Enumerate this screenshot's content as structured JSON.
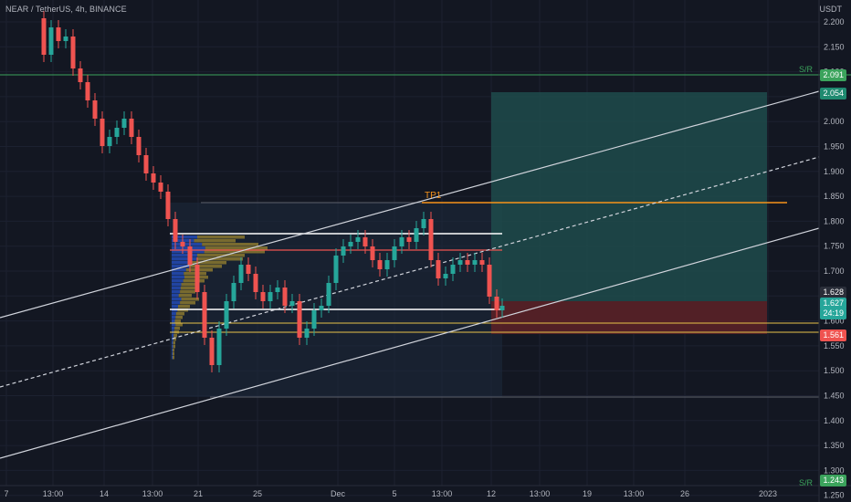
{
  "header": {
    "ticker": "NEAR / TetherUS, 4h, BINANCE",
    "currency": "USDT"
  },
  "price_axis": {
    "ticks": [
      "2.200",
      "2.150",
      "2.100",
      "2.050",
      "2.000",
      "1.950",
      "1.900",
      "1.850",
      "1.800",
      "1.750",
      "1.700",
      "1.650",
      "1.600",
      "1.550",
      "1.500",
      "1.450",
      "1.400",
      "1.350",
      "1.300",
      "1.250"
    ]
  },
  "time_axis": {
    "ticks": [
      "7",
      "13:00",
      "14",
      "13:00",
      "21",
      "25",
      "Dec",
      "5",
      "13:00",
      "12",
      "13:00",
      "19",
      "13:00",
      "26",
      "2023"
    ]
  },
  "labels": {
    "sr_top": "S/R",
    "sr_bottom": "S/R",
    "tp": "TP1",
    "sr_top_price": "2.091",
    "target_price": "2.054",
    "last_price": "1.628",
    "current_price": "1.627",
    "countdown": "24:19",
    "stop_price": "1.561",
    "sr_bottom_price": "1.243"
  },
  "colors": {
    "background": "#131722",
    "up": "#26a69a",
    "down": "#ef5350",
    "sr_line": "#3ba35c",
    "tp_line": "#f7931a",
    "profit_zone": "#1a4d4d",
    "loss_zone": "#5c1e24"
  }
}
